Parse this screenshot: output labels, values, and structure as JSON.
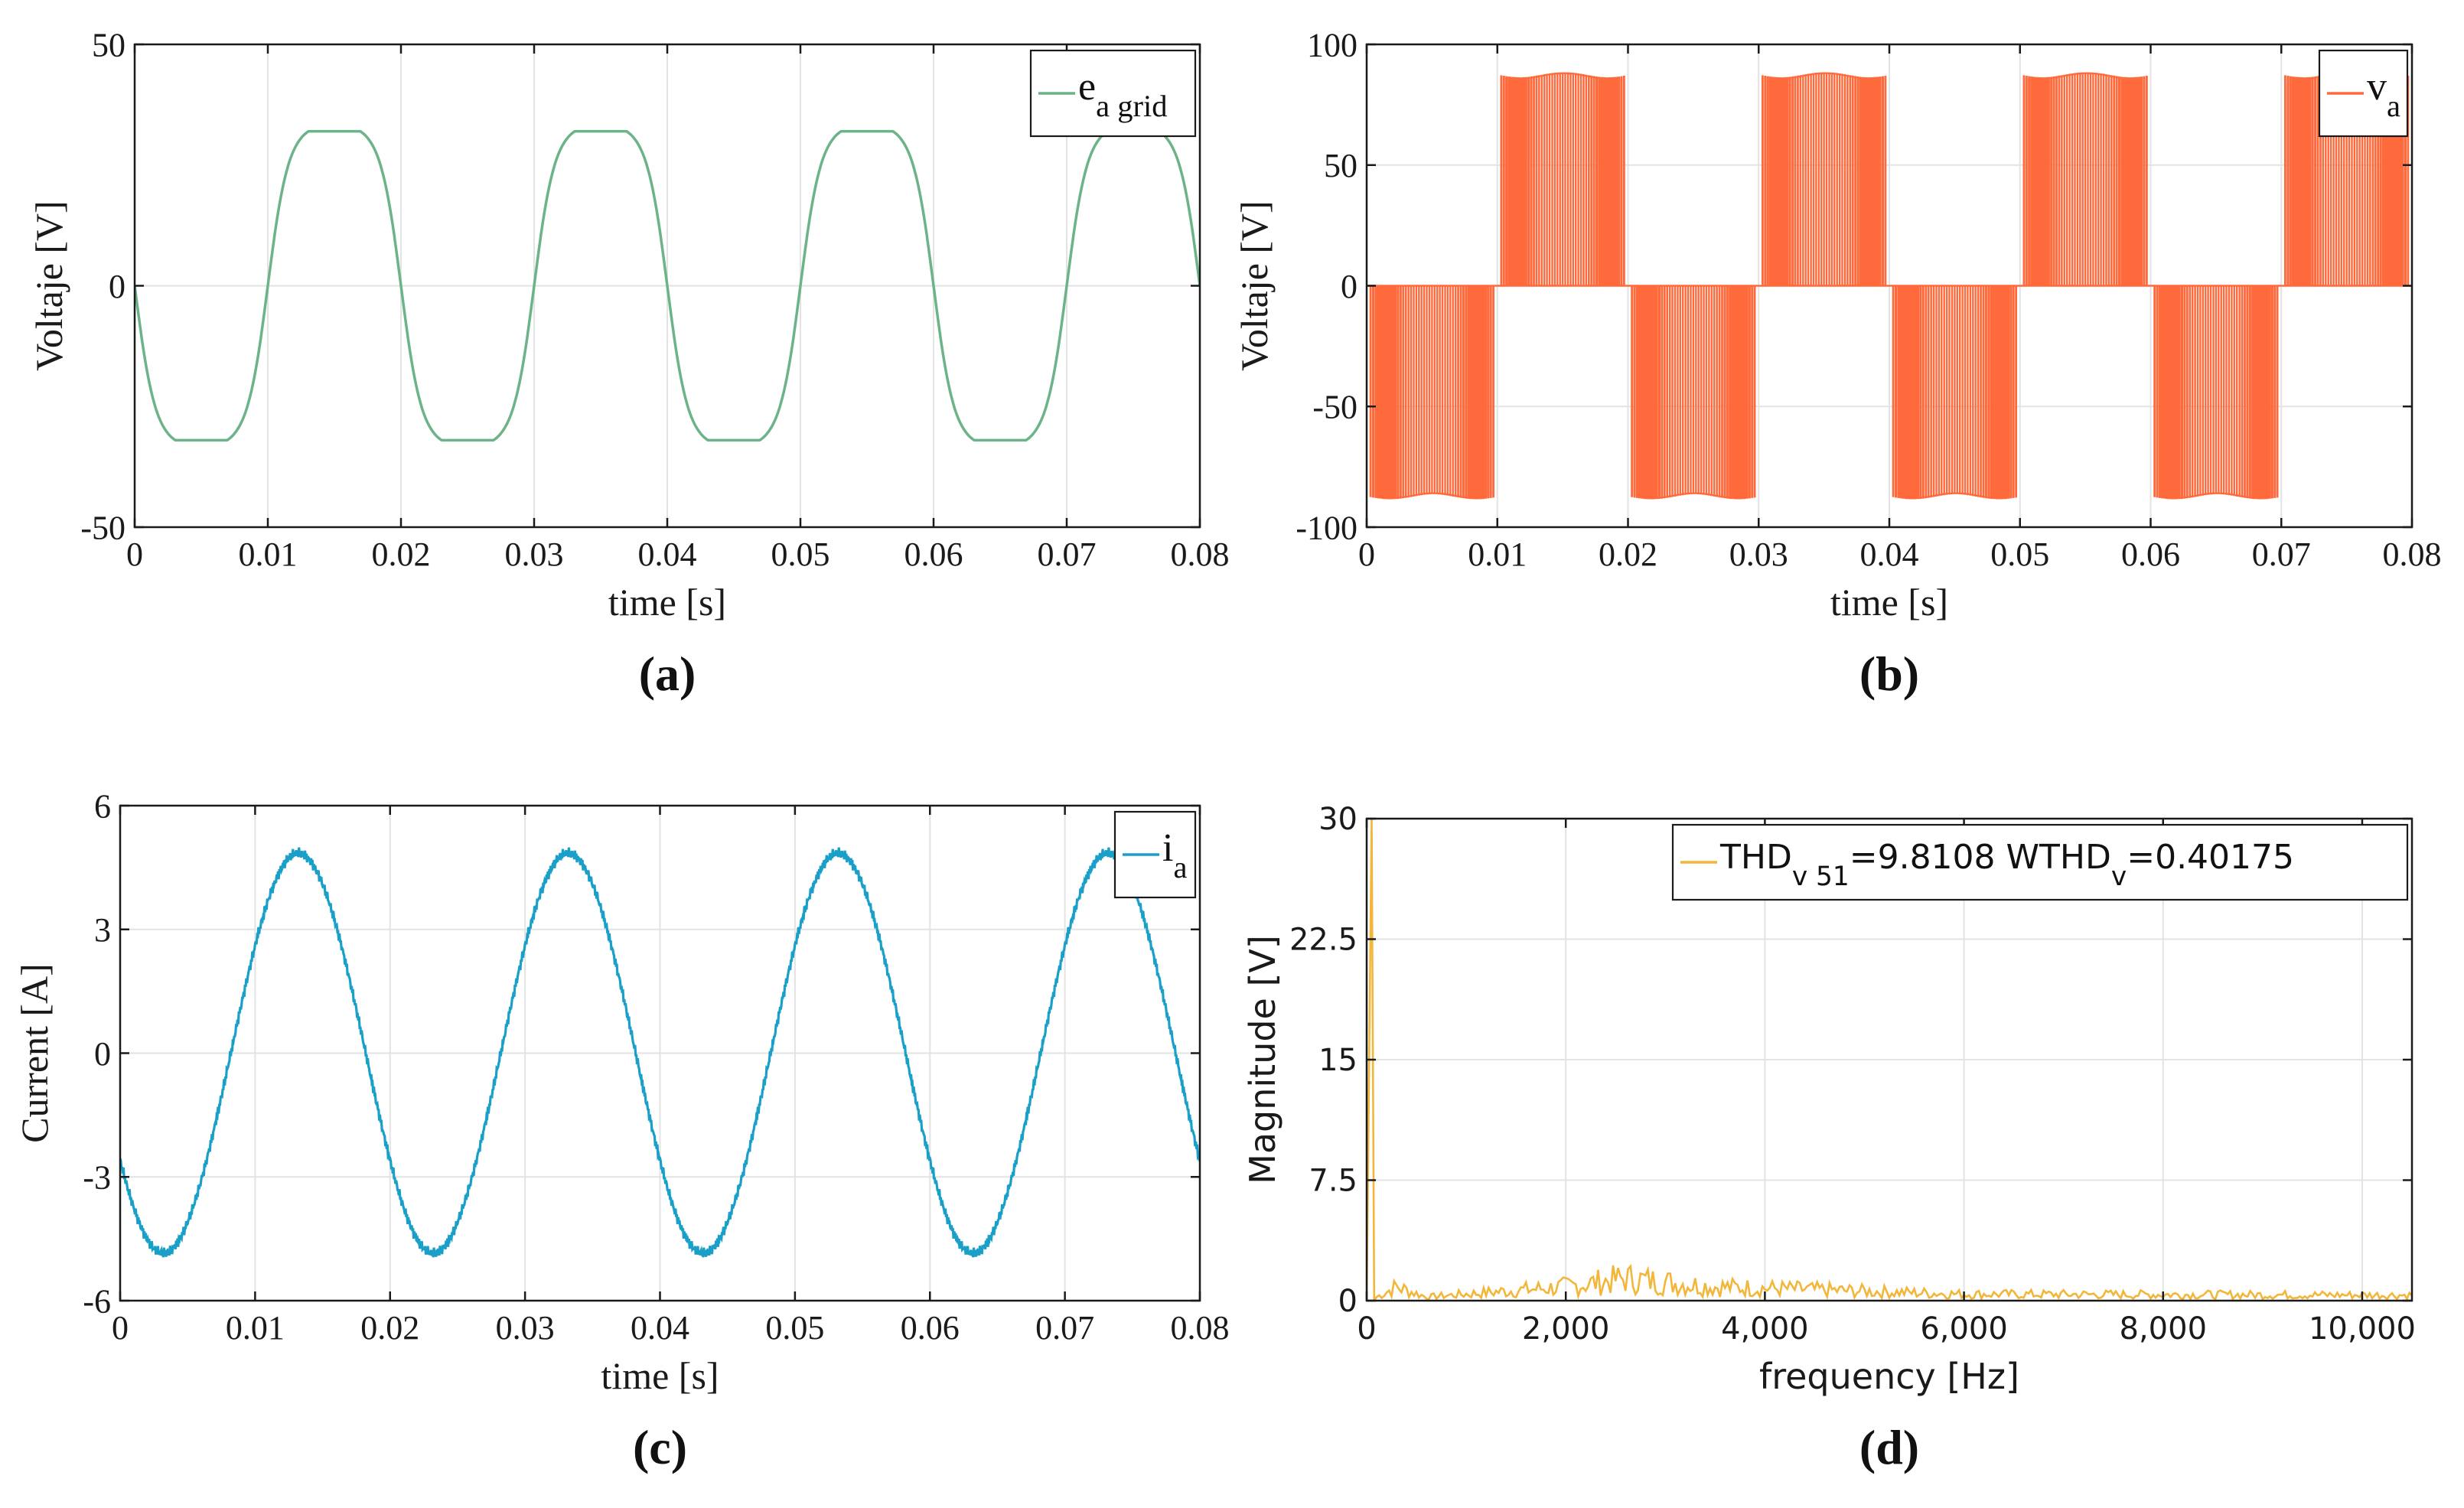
{
  "chart_data": [
    {
      "id": "a",
      "type": "line",
      "panel_label": "(a)",
      "xlabel": "time [s]",
      "ylabel": "Voltaje [V]",
      "xlim": [
        0,
        0.08
      ],
      "ylim": [
        -50,
        50
      ],
      "xticks": [
        0,
        0.01,
        0.02,
        0.03,
        0.04,
        0.05,
        0.06,
        0.07,
        0.08
      ],
      "xtick_labels": [
        "0",
        "0.01",
        "0.02",
        "0.03",
        "0.04",
        "0.05",
        "0.06",
        "0.07",
        "0.08"
      ],
      "yticks": [
        -50,
        0,
        50
      ],
      "ytick_labels": [
        "-50",
        "0",
        "50"
      ],
      "grid": true,
      "legend_position": "top-right",
      "color": "#6db38a",
      "series": [
        {
          "name": "e",
          "subscript": "a grid",
          "signal": "clipped_sine",
          "frequency_hz": 50,
          "peak": 32,
          "phase_start": "falling"
        }
      ]
    },
    {
      "id": "b",
      "type": "line",
      "panel_label": "(b)",
      "xlabel": "time [s]",
      "ylabel": "Voltaje [V]",
      "xlim": [
        0,
        0.08
      ],
      "ylim": [
        -100,
        100
      ],
      "xticks": [
        0,
        0.01,
        0.02,
        0.03,
        0.04,
        0.05,
        0.06,
        0.07,
        0.08
      ],
      "xtick_labels": [
        "0",
        "0.01",
        "0.02",
        "0.03",
        "0.04",
        "0.05",
        "0.06",
        "0.07",
        "0.08"
      ],
      "yticks": [
        -100,
        -50,
        0,
        50,
        100
      ],
      "ytick_labels": [
        "-100",
        "-50",
        "0",
        "50",
        "100"
      ],
      "grid": true,
      "legend_position": "top-right",
      "color": "#ff6a3d",
      "series": [
        {
          "name": "v",
          "subscript": "a",
          "signal": "pwm_unipolar",
          "frequency_hz": 50,
          "dc_link": 87,
          "phase_start": "falling"
        }
      ]
    },
    {
      "id": "c",
      "type": "line",
      "panel_label": "(c)",
      "xlabel": "time [s]",
      "ylabel": "Current [A]",
      "xlim": [
        0,
        0.08
      ],
      "ylim": [
        -6,
        6
      ],
      "xticks": [
        0,
        0.01,
        0.02,
        0.03,
        0.04,
        0.05,
        0.06,
        0.07,
        0.08
      ],
      "xtick_labels": [
        "0",
        "0.01",
        "0.02",
        "0.03",
        "0.04",
        "0.05",
        "0.06",
        "0.07",
        "0.08"
      ],
      "yticks": [
        -6,
        -3,
        0,
        3,
        6
      ],
      "ytick_labels": [
        "-6",
        "-3",
        "0",
        "3",
        "6"
      ],
      "grid": true,
      "legend_position": "top-right",
      "color": "#1aa0c8",
      "series": [
        {
          "name": "i",
          "subscript": "a",
          "signal": "sine_ripple",
          "frequency_hz": 50,
          "peak": 4.85,
          "value_at_t0": -2.6
        }
      ]
    },
    {
      "id": "d",
      "type": "bar",
      "panel_label": "(d)",
      "xlabel": "frequency [Hz]",
      "ylabel": "Magnitude [V]",
      "xlim": [
        0,
        10500
      ],
      "ylim": [
        0,
        30
      ],
      "xticks": [
        0,
        2000,
        4000,
        6000,
        8000,
        10000
      ],
      "xtick_labels": [
        "0",
        "2,000",
        "4,000",
        "6,000",
        "8,000",
        "10,000"
      ],
      "yticks": [
        0,
        7.5,
        15,
        22.5,
        30
      ],
      "ytick_labels": [
        "0",
        "7.5",
        "15",
        "22.5",
        "30"
      ],
      "grid": true,
      "legend_position": "top-right",
      "color": "#f2b73a",
      "series": [
        {
          "name": "THD",
          "subscript": "v 51",
          "suffix": "=9.8108 WTHD",
          "subscript2": "v",
          "suffix2": "=0.40175",
          "signal": "spectrum",
          "fundamental_hz": 50,
          "fundamental_magnitude": 30,
          "spectrum_envelope": [
            [
              100,
              0.4
            ],
            [
              300,
              1.5
            ],
            [
              600,
              0.4
            ],
            [
              2000,
              1.5
            ],
            [
              2600,
              2.4
            ],
            [
              3500,
              1.5
            ],
            [
              6000,
              0.7
            ],
            [
              10500,
              0.6
            ]
          ]
        }
      ]
    }
  ]
}
